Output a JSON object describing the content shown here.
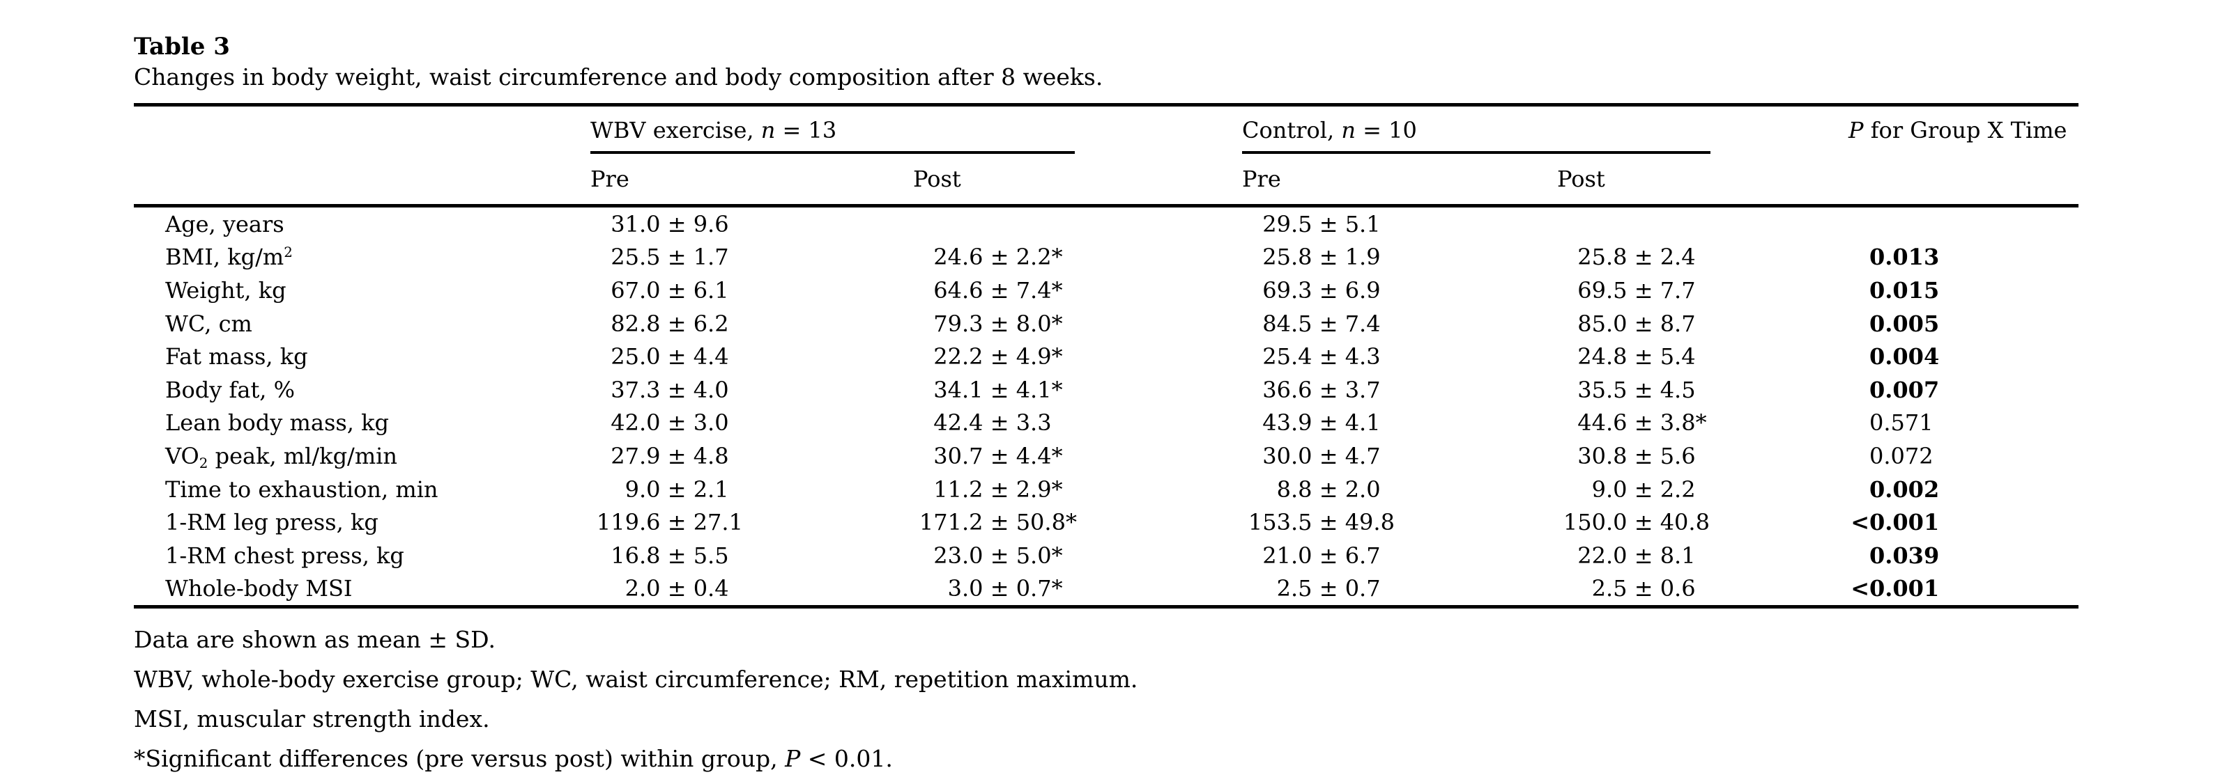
{
  "page": {
    "background": "#ffffff",
    "text_color": "#000000",
    "rule_color": "#000000"
  },
  "title": "Table 3",
  "caption": "Changes in body weight, waist circumference and body composition after 8 weeks.",
  "table": {
    "groups": {
      "wbv": {
        "segments": [
          {
            "t": "WBV exercise, "
          },
          {
            "t": "n",
            "s": "i"
          },
          {
            "t": " = 13"
          }
        ]
      },
      "control": {
        "segments": [
          {
            "t": "Control, "
          },
          {
            "t": "n",
            "s": "i"
          },
          {
            "t": " = 10"
          }
        ]
      },
      "p": {
        "segments": [
          {
            "t": "P",
            "s": "i"
          },
          {
            "t": " for Group X Time"
          }
        ]
      }
    },
    "subheaders": {
      "wbv_pre": "Pre",
      "wbv_post": "Post",
      "ctrl_pre": "Pre",
      "ctrl_post": "Post"
    },
    "rows": [
      {
        "label": [
          {
            "t": "Age, years"
          }
        ],
        "wbv_pre": "31.0 ± 9.6",
        "wbv_post": "",
        "ctrl_pre": "29.5 ± 5.1",
        "ctrl_post": "",
        "p": "",
        "p_bold": false
      },
      {
        "label": [
          {
            "t": "BMI, kg/m"
          },
          {
            "t": "2",
            "s": "sup"
          }
        ],
        "wbv_pre": "25.5 ± 1.7",
        "wbv_post": "24.6 ± 2.2*",
        "ctrl_pre": "25.8 ± 1.9",
        "ctrl_post": "25.8 ± 2.4",
        "p": "0.013",
        "p_bold": true
      },
      {
        "label": [
          {
            "t": "Weight, kg"
          }
        ],
        "wbv_pre": "67.0 ± 6.1",
        "wbv_post": "64.6 ± 7.4*",
        "ctrl_pre": "69.3 ± 6.9",
        "ctrl_post": "69.5 ± 7.7",
        "p": "0.015",
        "p_bold": true
      },
      {
        "label": [
          {
            "t": "WC, cm"
          }
        ],
        "wbv_pre": "82.8 ± 6.2",
        "wbv_post": "79.3 ± 8.0*",
        "ctrl_pre": "84.5 ± 7.4",
        "ctrl_post": "85.0 ± 8.7",
        "p": "0.005",
        "p_bold": true
      },
      {
        "label": [
          {
            "t": "Fat mass, kg"
          }
        ],
        "wbv_pre": "25.0 ± 4.4",
        "wbv_post": "22.2 ± 4.9*",
        "ctrl_pre": "25.4 ± 4.3",
        "ctrl_post": "24.8 ± 5.4",
        "p": "0.004",
        "p_bold": true
      },
      {
        "label": [
          {
            "t": "Body fat, %"
          }
        ],
        "wbv_pre": "37.3 ± 4.0",
        "wbv_post": "34.1 ± 4.1*",
        "ctrl_pre": "36.6 ± 3.7",
        "ctrl_post": "35.5 ± 4.5",
        "p": "0.007",
        "p_bold": true
      },
      {
        "label": [
          {
            "t": "Lean body mass, kg"
          }
        ],
        "wbv_pre": "42.0 ± 3.0",
        "wbv_post": "42.4 ± 3.3",
        "ctrl_pre": "43.9 ± 4.1",
        "ctrl_post": "44.6 ± 3.8*",
        "p": "0.571",
        "p_bold": false
      },
      {
        "label": [
          {
            "t": "VO"
          },
          {
            "t": "2",
            "s": "sub"
          },
          {
            "t": " peak, ml/kg/min"
          }
        ],
        "wbv_pre": "27.9 ± 4.8",
        "wbv_post": "30.7 ± 4.4*",
        "ctrl_pre": "30.0 ± 4.7",
        "ctrl_post": "30.8 ± 5.6",
        "p": "0.072",
        "p_bold": false
      },
      {
        "label": [
          {
            "t": "Time to exhaustion, min"
          }
        ],
        "wbv_pre": "9.0 ± 2.1",
        "wbv_post": "11.2 ± 2.9*",
        "ctrl_pre": "8.8 ± 2.0",
        "ctrl_post": "9.0 ± 2.2",
        "p": "0.002",
        "p_bold": true
      },
      {
        "label": [
          {
            "t": "1-RM leg press, kg"
          }
        ],
        "wbv_pre": "119.6 ± 27.1",
        "wbv_post": "171.2 ± 50.8*",
        "ctrl_pre": "153.5 ± 49.8",
        "ctrl_post": "150.0 ± 40.8",
        "p": "<0.001",
        "p_bold": true
      },
      {
        "label": [
          {
            "t": "1-RM chest press, kg"
          }
        ],
        "wbv_pre": "16.8 ± 5.5",
        "wbv_post": "23.0 ± 5.0*",
        "ctrl_pre": "21.0 ± 6.7",
        "ctrl_post": "22.0 ± 8.1",
        "p": "0.039",
        "p_bold": true
      },
      {
        "label": [
          {
            "t": "Whole-body MSI"
          }
        ],
        "wbv_pre": "2.0 ± 0.4",
        "wbv_post": "3.0 ± 0.7*",
        "ctrl_pre": "2.5 ± 0.7",
        "ctrl_post": "2.5 ± 0.6",
        "p": "<0.001",
        "p_bold": true
      }
    ]
  },
  "footnotes": [
    {
      "segments": [
        {
          "t": "Data are shown as mean ± SD."
        }
      ]
    },
    {
      "segments": [
        {
          "t": "WBV, whole-body exercise group; WC, waist circumference; RM, repetition maximum."
        }
      ]
    },
    {
      "segments": [
        {
          "t": "MSI, muscular strength index."
        }
      ]
    },
    {
      "segments": [
        {
          "t": "*Significant differences (pre versus post) within group, "
        },
        {
          "t": "P",
          "s": "i"
        },
        {
          "t": " < 0.01."
        }
      ]
    }
  ]
}
